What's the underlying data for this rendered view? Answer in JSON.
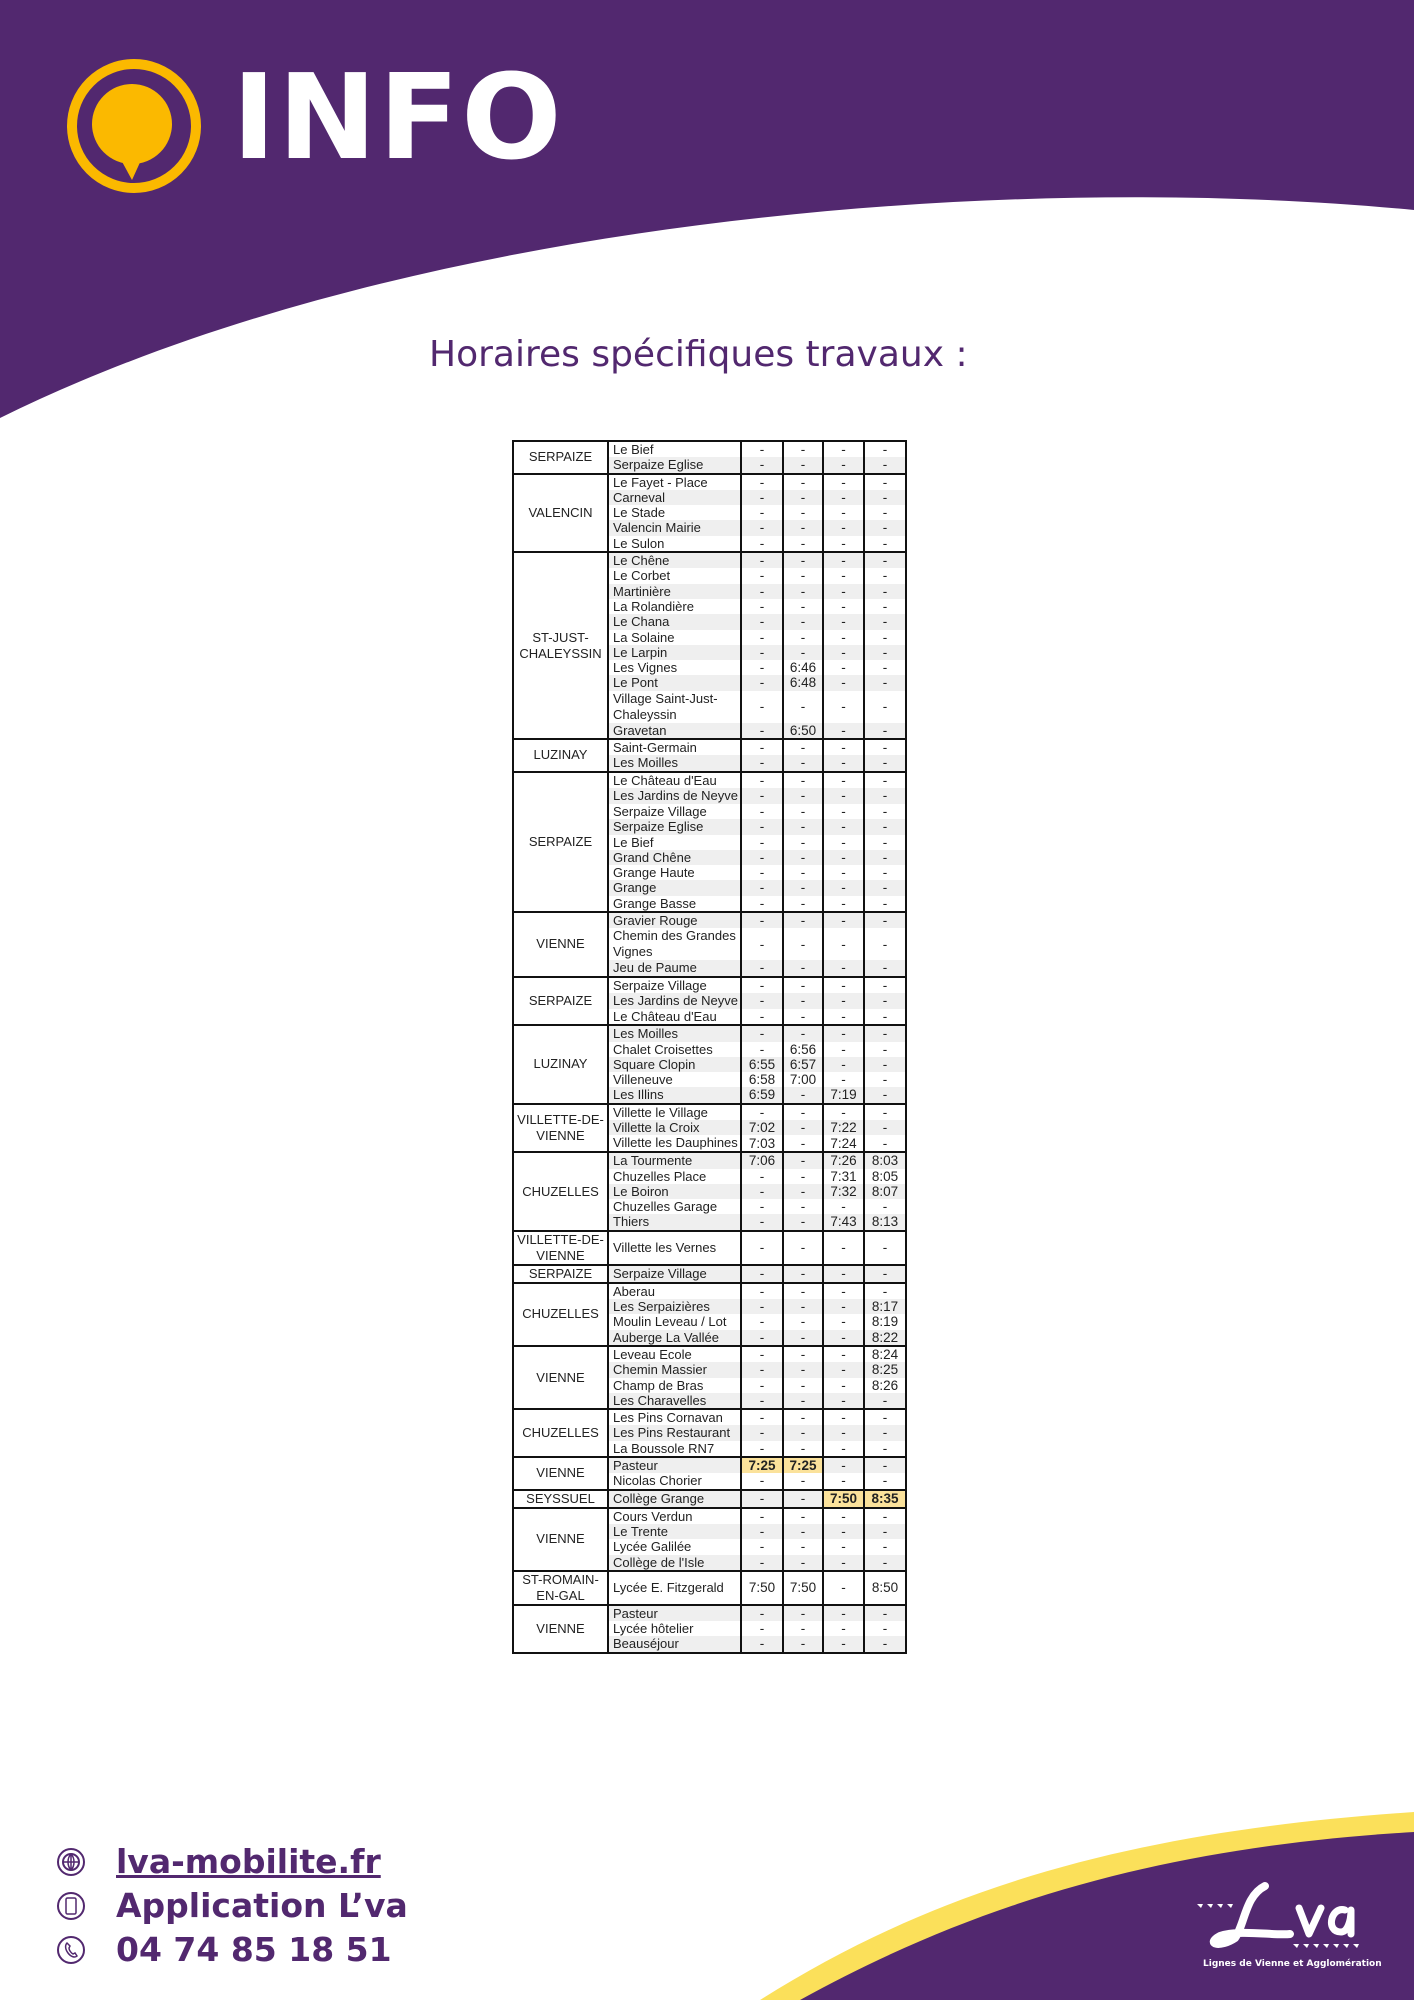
{
  "colors": {
    "brand_purple": "#52286f",
    "brand_yellow": "#fbb900",
    "highlight": "#fbe29b",
    "stripe": "#efefef"
  },
  "header": {
    "title": "INFO",
    "logo_icon": "speech-bubble-icon"
  },
  "subtitle": "Horaires spécifiques travaux :",
  "timetable": [
    {
      "commune": "SERPAIZE",
      "stops": [
        {
          "name": "Le Bief",
          "times": [
            "-",
            "-",
            "-",
            "-"
          ]
        },
        {
          "name": "Serpaize Eglise",
          "times": [
            "-",
            "-",
            "-",
            "-"
          ]
        }
      ]
    },
    {
      "commune": "VALENCIN",
      "stops": [
        {
          "name": "Le Fayet - Place",
          "times": [
            "-",
            "-",
            "-",
            "-"
          ]
        },
        {
          "name": "Carneval",
          "times": [
            "-",
            "-",
            "-",
            "-"
          ]
        },
        {
          "name": "Le Stade",
          "times": [
            "-",
            "-",
            "-",
            "-"
          ]
        },
        {
          "name": "Valencin Mairie",
          "times": [
            "-",
            "-",
            "-",
            "-"
          ]
        },
        {
          "name": "Le Sulon",
          "times": [
            "-",
            "-",
            "-",
            "-"
          ]
        }
      ]
    },
    {
      "commune": "ST-JUST-CHALEYSSIN",
      "stops": [
        {
          "name": "Le Chêne",
          "times": [
            "-",
            "-",
            "-",
            "-"
          ]
        },
        {
          "name": "Le Corbet",
          "times": [
            "-",
            "-",
            "-",
            "-"
          ]
        },
        {
          "name": "Martinière",
          "times": [
            "-",
            "-",
            "-",
            "-"
          ]
        },
        {
          "name": "La Rolandière",
          "times": [
            "-",
            "-",
            "-",
            "-"
          ]
        },
        {
          "name": "Le Chana",
          "times": [
            "-",
            "-",
            "-",
            "-"
          ]
        },
        {
          "name": "La Solaine",
          "times": [
            "-",
            "-",
            "-",
            "-"
          ]
        },
        {
          "name": "Le Larpin",
          "times": [
            "-",
            "-",
            "-",
            "-"
          ]
        },
        {
          "name": "Les Vignes",
          "times": [
            "-",
            "6:46",
            "-",
            "-"
          ]
        },
        {
          "name": "Le Pont",
          "times": [
            "-",
            "6:48",
            "-",
            "-"
          ]
        },
        {
          "name": "Village Saint-Just-Chaleyssin",
          "times": [
            "-",
            "-",
            "-",
            "-"
          ]
        },
        {
          "name": "Gravetan",
          "times": [
            "-",
            "6:50",
            "-",
            "-"
          ]
        }
      ]
    },
    {
      "commune": "LUZINAY",
      "stops": [
        {
          "name": "Saint-Germain",
          "times": [
            "-",
            "-",
            "-",
            "-"
          ]
        },
        {
          "name": "Les Moilles",
          "times": [
            "-",
            "-",
            "-",
            "-"
          ]
        }
      ]
    },
    {
      "commune": "SERPAIZE",
      "stops": [
        {
          "name": "Le Château d'Eau",
          "times": [
            "-",
            "-",
            "-",
            "-"
          ]
        },
        {
          "name": "Les Jardins de Neyve",
          "times": [
            "-",
            "-",
            "-",
            "-"
          ]
        },
        {
          "name": "Serpaize Village",
          "times": [
            "-",
            "-",
            "-",
            "-"
          ]
        },
        {
          "name": "Serpaize Eglise",
          "times": [
            "-",
            "-",
            "-",
            "-"
          ]
        },
        {
          "name": "Le Bief",
          "times": [
            "-",
            "-",
            "-",
            "-"
          ]
        },
        {
          "name": "Grand Chêne",
          "times": [
            "-",
            "-",
            "-",
            "-"
          ]
        },
        {
          "name": "Grange Haute",
          "times": [
            "-",
            "-",
            "-",
            "-"
          ]
        },
        {
          "name": "Grange",
          "times": [
            "-",
            "-",
            "-",
            "-"
          ]
        },
        {
          "name": "Grange Basse",
          "times": [
            "-",
            "-",
            "-",
            "-"
          ]
        }
      ]
    },
    {
      "commune": "VIENNE",
      "stops": [
        {
          "name": "Gravier Rouge",
          "times": [
            "-",
            "-",
            "-",
            "-"
          ]
        },
        {
          "name": "Chemin des Grandes Vignes",
          "times": [
            "-",
            "-",
            "-",
            "-"
          ]
        },
        {
          "name": "Jeu de Paume",
          "times": [
            "-",
            "-",
            "-",
            "-"
          ]
        }
      ]
    },
    {
      "commune": "SERPAIZE",
      "stops": [
        {
          "name": "Serpaize Village",
          "times": [
            "-",
            "-",
            "-",
            "-"
          ]
        },
        {
          "name": "Les Jardins de Neyve",
          "times": [
            "-",
            "-",
            "-",
            "-"
          ]
        },
        {
          "name": "Le Château d'Eau",
          "times": [
            "-",
            "-",
            "-",
            "-"
          ]
        }
      ]
    },
    {
      "commune": "LUZINAY",
      "stops": [
        {
          "name": "Les Moilles",
          "times": [
            "-",
            "-",
            "-",
            "-"
          ]
        },
        {
          "name": "Chalet Croisettes",
          "times": [
            "-",
            "6:56",
            "-",
            "-"
          ]
        },
        {
          "name": "Square Clopin",
          "times": [
            "6:55",
            "6:57",
            "-",
            "-"
          ]
        },
        {
          "name": "Villeneuve",
          "times": [
            "6:58",
            "7:00",
            "-",
            "-"
          ]
        },
        {
          "name": "Les Illins",
          "times": [
            "6:59",
            "-",
            "7:19",
            "-"
          ]
        }
      ]
    },
    {
      "commune": "VILLETTE-DE-VIENNE",
      "stops": [
        {
          "name": "Villette le Village",
          "times": [
            "-",
            "-",
            "-",
            "-"
          ]
        },
        {
          "name": "Villette la Croix",
          "times": [
            "7:02",
            "-",
            "7:22",
            "-"
          ]
        },
        {
          "name": "Villette les Dauphines",
          "times": [
            "7:03",
            "-",
            "7:24",
            "-"
          ]
        }
      ]
    },
    {
      "commune": "CHUZELLES",
      "stops": [
        {
          "name": "La Tourmente",
          "times": [
            "7:06",
            "-",
            "7:26",
            "8:03"
          ]
        },
        {
          "name": "Chuzelles Place",
          "times": [
            "-",
            "-",
            "7:31",
            "8:05"
          ]
        },
        {
          "name": "Le Boiron",
          "times": [
            "-",
            "-",
            "7:32",
            "8:07"
          ]
        },
        {
          "name": "Chuzelles Garage",
          "times": [
            "-",
            "-",
            "-",
            "-"
          ]
        },
        {
          "name": "Thiers",
          "times": [
            "-",
            "-",
            "7:43",
            "8:13"
          ]
        }
      ]
    },
    {
      "commune": "VILLETTE-DE-VIENNE",
      "stops": [
        {
          "name": "Villette les Vernes",
          "times": [
            "-",
            "-",
            "-",
            "-"
          ],
          "tall": true
        }
      ]
    },
    {
      "commune": "SERPAIZE",
      "stops": [
        {
          "name": "Serpaize Village",
          "times": [
            "-",
            "-",
            "-",
            "-"
          ]
        }
      ]
    },
    {
      "commune": "CHUZELLES",
      "stops": [
        {
          "name": "Aberau",
          "times": [
            "-",
            "-",
            "-",
            "-"
          ]
        },
        {
          "name": "Les Serpaizières",
          "times": [
            "-",
            "-",
            "-",
            "8:17"
          ]
        },
        {
          "name": "Moulin Leveau / Lot",
          "times": [
            "-",
            "-",
            "-",
            "8:19"
          ]
        },
        {
          "name": "Auberge La Vallée",
          "times": [
            "-",
            "-",
            "-",
            "8:22"
          ]
        }
      ]
    },
    {
      "commune": "VIENNE",
      "stops": [
        {
          "name": "Leveau Ecole",
          "times": [
            "-",
            "-",
            "-",
            "8:24"
          ]
        },
        {
          "name": "Chemin Massier",
          "times": [
            "-",
            "-",
            "-",
            "8:25"
          ]
        },
        {
          "name": "Champ de Bras",
          "times": [
            "-",
            "-",
            "-",
            "8:26"
          ]
        },
        {
          "name": "Les Charavelles",
          "times": [
            "-",
            "-",
            "-",
            "-"
          ]
        }
      ]
    },
    {
      "commune": "CHUZELLES",
      "stops": [
        {
          "name": "Les Pins Cornavan",
          "times": [
            "-",
            "-",
            "-",
            "-"
          ]
        },
        {
          "name": "Les Pins Restaurant",
          "times": [
            "-",
            "-",
            "-",
            "-"
          ]
        },
        {
          "name": "La Boussole RN7",
          "times": [
            "-",
            "-",
            "-",
            "-"
          ]
        }
      ]
    },
    {
      "commune": "VIENNE",
      "stops": [
        {
          "name": "Pasteur",
          "times": [
            "7:25",
            "7:25",
            "-",
            "-"
          ],
          "highlight": [
            0,
            1
          ]
        },
        {
          "name": "Nicolas Chorier",
          "times": [
            "-",
            "-",
            "-",
            "-"
          ]
        }
      ]
    },
    {
      "commune": "SEYSSUEL",
      "stops": [
        {
          "name": "Collège Grange",
          "times": [
            "-",
            "-",
            "7:50",
            "8:35"
          ],
          "highlight": [
            2,
            3
          ]
        }
      ]
    },
    {
      "commune": "VIENNE",
      "stops": [
        {
          "name": "Cours Verdun",
          "times": [
            "-",
            "-",
            "-",
            "-"
          ]
        },
        {
          "name": "Le Trente",
          "times": [
            "-",
            "-",
            "-",
            "-"
          ]
        },
        {
          "name": "Lycée Galilée",
          "times": [
            "-",
            "-",
            "-",
            "-"
          ]
        },
        {
          "name": "Collège de l'Isle",
          "times": [
            "-",
            "-",
            "-",
            "-"
          ]
        }
      ]
    },
    {
      "commune": "ST-ROMAIN-EN-GAL",
      "stops": [
        {
          "name": "Lycée E. Fitzgerald",
          "times": [
            "7:50",
            "7:50",
            "-",
            "8:50"
          ],
          "tall": true
        }
      ]
    },
    {
      "commune": "VIENNE",
      "stops": [
        {
          "name": "Pasteur",
          "times": [
            "-",
            "-",
            "-",
            "-"
          ]
        },
        {
          "name": "Lycée hôtelier",
          "times": [
            "-",
            "-",
            "-",
            "-"
          ]
        },
        {
          "name": "Beauséjour",
          "times": [
            "-",
            "-",
            "-",
            "-"
          ]
        }
      ]
    }
  ],
  "footer": {
    "website": {
      "label": "lva-mobilite.fr",
      "icon": "globe-icon"
    },
    "app": {
      "label": "Application L’va",
      "icon": "smartphone-icon"
    },
    "phone": {
      "label": "04 74 85 18 51",
      "icon": "phone-icon"
    },
    "brand": {
      "logo": "L'va",
      "tagline": "Lignes de Vienne et Agglomération"
    }
  }
}
